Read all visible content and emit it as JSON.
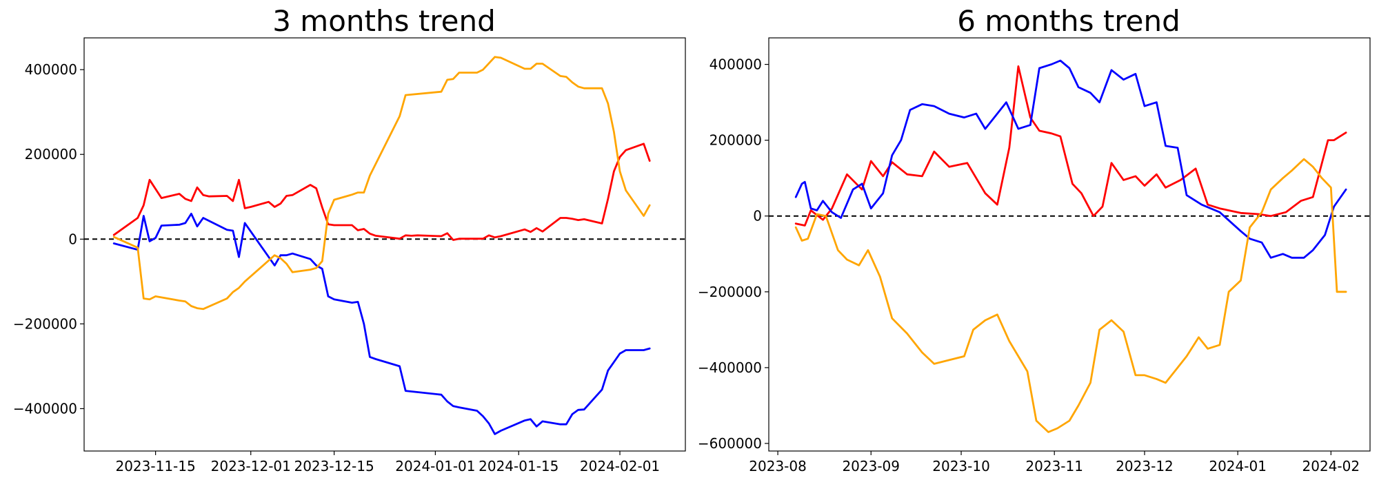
{
  "chart_data": [
    {
      "type": "line",
      "title": "3 months trend",
      "x_type": "date",
      "xlim": [
        "2023-11-03",
        "2024-02-12"
      ],
      "ylim": [
        -500000,
        475000
      ],
      "x_ticks": [
        "2023-11-15",
        "2023-12-01",
        "2023-12-15",
        "2024-01-01",
        "2024-01-15",
        "2024-02-01"
      ],
      "y_ticks": [
        -400000,
        -200000,
        0,
        200000,
        400000
      ],
      "y_tick_labels": [
        "−400000",
        "−200000",
        "0",
        "200000",
        "400000"
      ],
      "reference_line": {
        "y": 0,
        "style": "dashed",
        "color": "#000000"
      },
      "grid": false,
      "series": [
        {
          "color": "#ff0000",
          "x": [
            "2023-11-08",
            "2023-11-12",
            "2023-11-13",
            "2023-11-14",
            "2023-11-16",
            "2023-11-19",
            "2023-11-20",
            "2023-11-21",
            "2023-11-22",
            "2023-11-23",
            "2023-11-24",
            "2023-11-27",
            "2023-11-28",
            "2023-11-29",
            "2023-11-30",
            "2023-12-01",
            "2023-12-04",
            "2023-12-05",
            "2023-12-06",
            "2023-12-07",
            "2023-12-08",
            "2023-12-11",
            "2023-12-12",
            "2023-12-13",
            "2023-12-14",
            "2023-12-15",
            "2023-12-18",
            "2023-12-19",
            "2023-12-20",
            "2023-12-21",
            "2023-12-22",
            "2023-12-26",
            "2023-12-27",
            "2023-12-28",
            "2023-12-29",
            "2024-01-02",
            "2024-01-03",
            "2024-01-04",
            "2024-01-05",
            "2024-01-08",
            "2024-01-09",
            "2024-01-10",
            "2024-01-11",
            "2024-01-12",
            "2024-01-16",
            "2024-01-17",
            "2024-01-18",
            "2024-01-19",
            "2024-01-22",
            "2024-01-23",
            "2024-01-24",
            "2024-01-25",
            "2024-01-26",
            "2024-01-29",
            "2024-01-30",
            "2024-01-31",
            "2024-02-01",
            "2024-02-02",
            "2024-02-05",
            "2024-02-06"
          ],
          "y": [
            10000,
            50000,
            80000,
            140000,
            97000,
            107000,
            95000,
            90000,
            122000,
            104000,
            101000,
            102000,
            90000,
            140000,
            73000,
            76000,
            88000,
            76000,
            84000,
            102000,
            104000,
            128000,
            120000,
            75000,
            35000,
            33000,
            33000,
            21000,
            24000,
            13000,
            8000,
            1000,
            9000,
            8000,
            9000,
            7000,
            14000,
            -2000,
            1000,
            1000,
            1000,
            9000,
            4000,
            7000,
            23000,
            17000,
            26000,
            18000,
            50000,
            50000,
            48000,
            45000,
            47000,
            37000,
            95000,
            160000,
            194000,
            210000,
            225000,
            185000
          ]
        },
        {
          "color": "#0000ff",
          "x": [
            "2023-11-08",
            "2023-11-12",
            "2023-11-13",
            "2023-11-14",
            "2023-11-15",
            "2023-11-16",
            "2023-11-19",
            "2023-11-20",
            "2023-11-21",
            "2023-11-22",
            "2023-11-23",
            "2023-11-27",
            "2023-11-28",
            "2023-11-29",
            "2023-11-30",
            "2023-12-05",
            "2023-12-06",
            "2023-12-07",
            "2023-12-08",
            "2023-12-11",
            "2023-12-12",
            "2023-12-13",
            "2023-12-14",
            "2023-12-15",
            "2023-12-18",
            "2023-12-19",
            "2023-12-20",
            "2023-12-21",
            "2023-12-22",
            "2023-12-26",
            "2023-12-27",
            "2024-01-02",
            "2024-01-03",
            "2024-01-04",
            "2024-01-05",
            "2024-01-08",
            "2024-01-09",
            "2024-01-10",
            "2024-01-11",
            "2024-01-12",
            "2024-01-16",
            "2024-01-17",
            "2024-01-18",
            "2024-01-19",
            "2024-01-22",
            "2024-01-23",
            "2024-01-24",
            "2024-01-25",
            "2024-01-26",
            "2024-01-29",
            "2024-01-30",
            "2024-01-31",
            "2024-02-01",
            "2024-02-02",
            "2024-02-05",
            "2024-02-06"
          ],
          "y": [
            -10000,
            -25000,
            55000,
            -5000,
            3000,
            32000,
            34000,
            38000,
            60000,
            30000,
            50000,
            22000,
            20000,
            -42000,
            38000,
            -62000,
            -38000,
            -38000,
            -34000,
            -47000,
            -62000,
            -70000,
            -135000,
            -142000,
            -150000,
            -148000,
            -200000,
            -278000,
            -283000,
            -300000,
            -358000,
            -367000,
            -383000,
            -394000,
            -397000,
            -405000,
            -418000,
            -435000,
            -460000,
            -452000,
            -428000,
            -425000,
            -442000,
            -430000,
            -437000,
            -437000,
            -413000,
            -403000,
            -402000,
            -355000,
            -310000,
            -290000,
            -270000,
            -262000,
            -262000,
            -258000
          ]
        },
        {
          "color": "#ffa500",
          "x": [
            "2023-11-08",
            "2023-11-12",
            "2023-11-13",
            "2023-11-14",
            "2023-11-15",
            "2023-11-19",
            "2023-11-20",
            "2023-11-21",
            "2023-11-22",
            "2023-11-23",
            "2023-11-27",
            "2023-11-28",
            "2023-11-29",
            "2023-11-30",
            "2023-12-05",
            "2023-12-06",
            "2023-12-07",
            "2023-12-08",
            "2023-12-11",
            "2023-12-12",
            "2023-12-13",
            "2023-12-14",
            "2023-12-15",
            "2023-12-18",
            "2023-12-19",
            "2023-12-20",
            "2023-12-21",
            "2023-12-26",
            "2023-12-27",
            "2024-01-02",
            "2024-01-03",
            "2024-01-04",
            "2024-01-05",
            "2024-01-08",
            "2024-01-09",
            "2024-01-10",
            "2024-01-11",
            "2024-01-12",
            "2024-01-16",
            "2024-01-17",
            "2024-01-18",
            "2024-01-19",
            "2024-01-22",
            "2024-01-23",
            "2024-01-24",
            "2024-01-25",
            "2024-01-26",
            "2024-01-29",
            "2024-01-30",
            "2024-01-31",
            "2024-02-01",
            "2024-02-02",
            "2024-02-05",
            "2024-02-06"
          ],
          "y": [
            5000,
            -20000,
            -140000,
            -142000,
            -135000,
            -145000,
            -147000,
            -158000,
            -163000,
            -165000,
            -140000,
            -125000,
            -115000,
            -100000,
            -38000,
            -45000,
            -58000,
            -78000,
            -72000,
            -68000,
            -52000,
            60000,
            93000,
            105000,
            110000,
            110000,
            150000,
            290000,
            340000,
            348000,
            376000,
            378000,
            393000,
            393000,
            400000,
            415000,
            430000,
            428000,
            402000,
            402000,
            414000,
            414000,
            385000,
            383000,
            370000,
            360000,
            356000,
            356000,
            320000,
            253000,
            160000,
            115000,
            55000,
            80000
          ]
        }
      ]
    },
    {
      "type": "line",
      "title": "6 months trend",
      "x_type": "date",
      "xlim": [
        "2023-07-29",
        "2024-02-14"
      ],
      "ylim": [
        -620000,
        470000
      ],
      "x_ticks": [
        "2023-08",
        "2023-09",
        "2023-10",
        "2023-11",
        "2023-12",
        "2024-01",
        "2024-02"
      ],
      "x_tick_dates": [
        "2023-08-01",
        "2023-09-01",
        "2023-10-01",
        "2023-11-01",
        "2023-12-01",
        "2024-01-01",
        "2024-02-01"
      ],
      "y_ticks": [
        -600000,
        -400000,
        -200000,
        0,
        200000,
        400000
      ],
      "y_tick_labels": [
        "−600000",
        "−400000",
        "−200000",
        "0",
        "200000",
        "400000"
      ],
      "reference_line": {
        "y": 0,
        "style": "dashed",
        "color": "#000000"
      },
      "grid": false,
      "series": [
        {
          "color": "#ff0000",
          "x": [
            "2023-08-07",
            "2023-08-10",
            "2023-08-12",
            "2023-08-16",
            "2023-08-19",
            "2023-08-24",
            "2023-08-29",
            "2023-09-01",
            "2023-09-05",
            "2023-09-08",
            "2023-09-13",
            "2023-09-18",
            "2023-09-22",
            "2023-09-27",
            "2023-10-03",
            "2023-10-09",
            "2023-10-13",
            "2023-10-17",
            "2023-10-20",
            "2023-10-24",
            "2023-10-27",
            "2023-10-31",
            "2023-11-03",
            "2023-11-07",
            "2023-11-10",
            "2023-11-14",
            "2023-11-17",
            "2023-11-20",
            "2023-11-24",
            "2023-11-28",
            "2023-12-01",
            "2023-12-05",
            "2023-12-08",
            "2023-12-13",
            "2023-12-18",
            "2023-12-22",
            "2023-12-26",
            "2024-01-02",
            "2024-01-08",
            "2024-01-12",
            "2024-01-17",
            "2024-01-22",
            "2024-01-26",
            "2024-01-31",
            "2024-02-02",
            "2024-02-06"
          ],
          "y": [
            -20000,
            -25000,
            15000,
            -10000,
            20000,
            110000,
            70000,
            145000,
            105000,
            142000,
            110000,
            105000,
            170000,
            130000,
            140000,
            60000,
            30000,
            180000,
            395000,
            260000,
            225000,
            218000,
            210000,
            85000,
            60000,
            0,
            25000,
            140000,
            95000,
            105000,
            80000,
            110000,
            75000,
            95000,
            125000,
            30000,
            20000,
            8000,
            5000,
            0,
            10000,
            40000,
            50000,
            200000,
            200000,
            220000
          ]
        },
        {
          "color": "#0000ff",
          "x": [
            "2023-08-07",
            "2023-08-09",
            "2023-08-10",
            "2023-08-12",
            "2023-08-14",
            "2023-08-16",
            "2023-08-19",
            "2023-08-22",
            "2023-08-26",
            "2023-08-29",
            "2023-09-01",
            "2023-09-05",
            "2023-09-08",
            "2023-09-11",
            "2023-09-14",
            "2023-09-18",
            "2023-09-22",
            "2023-09-27",
            "2023-10-02",
            "2023-10-06",
            "2023-10-09",
            "2023-10-12",
            "2023-10-16",
            "2023-10-20",
            "2023-10-24",
            "2023-10-27",
            "2023-10-31",
            "2023-11-03",
            "2023-11-06",
            "2023-11-09",
            "2023-11-13",
            "2023-11-16",
            "2023-11-20",
            "2023-11-24",
            "2023-11-28",
            "2023-12-01",
            "2023-12-05",
            "2023-12-08",
            "2023-12-12",
            "2023-12-15",
            "2023-12-20",
            "2023-12-26",
            "2024-01-02",
            "2024-01-05",
            "2024-01-09",
            "2024-01-12",
            "2024-01-16",
            "2024-01-19",
            "2024-01-23",
            "2024-01-26",
            "2024-01-30",
            "2024-02-02",
            "2024-02-06"
          ],
          "y": [
            50000,
            85000,
            90000,
            20000,
            15000,
            40000,
            10000,
            -5000,
            70000,
            85000,
            20000,
            60000,
            160000,
            200000,
            280000,
            295000,
            290000,
            270000,
            260000,
            270000,
            230000,
            260000,
            300000,
            230000,
            240000,
            390000,
            400000,
            410000,
            390000,
            340000,
            325000,
            300000,
            385000,
            360000,
            375000,
            290000,
            300000,
            185000,
            180000,
            55000,
            30000,
            10000,
            -40000,
            -60000,
            -70000,
            -110000,
            -100000,
            -110000,
            -110000,
            -90000,
            -50000,
            25000,
            70000
          ]
        },
        {
          "color": "#ffa500",
          "x": [
            "2023-08-07",
            "2023-08-09",
            "2023-08-11",
            "2023-08-14",
            "2023-08-17",
            "2023-08-21",
            "2023-08-24",
            "2023-08-28",
            "2023-08-31",
            "2023-09-04",
            "2023-09-08",
            "2023-09-13",
            "2023-09-18",
            "2023-09-22",
            "2023-09-27",
            "2023-10-02",
            "2023-10-05",
            "2023-10-09",
            "2023-10-13",
            "2023-10-17",
            "2023-10-20",
            "2023-10-23",
            "2023-10-26",
            "2023-10-30",
            "2023-11-02",
            "2023-11-06",
            "2023-11-09",
            "2023-11-13",
            "2023-11-16",
            "2023-11-20",
            "2023-11-24",
            "2023-11-28",
            "2023-12-01",
            "2023-12-05",
            "2023-12-08",
            "2023-12-12",
            "2023-12-15",
            "2023-12-19",
            "2023-12-22",
            "2023-12-26",
            "2023-12-29",
            "2024-01-02",
            "2024-01-05",
            "2024-01-09",
            "2024-01-12",
            "2024-01-16",
            "2024-01-19",
            "2024-01-23",
            "2024-01-26",
            "2024-01-29",
            "2024-02-01",
            "2024-02-03",
            "2024-02-06"
          ],
          "y": [
            -30000,
            -65000,
            -60000,
            5000,
            0,
            -90000,
            -115000,
            -130000,
            -90000,
            -160000,
            -270000,
            -310000,
            -360000,
            -390000,
            -380000,
            -370000,
            -300000,
            -275000,
            -260000,
            -330000,
            -370000,
            -410000,
            -540000,
            -570000,
            -560000,
            -540000,
            -500000,
            -440000,
            -300000,
            -275000,
            -305000,
            -420000,
            -420000,
            -430000,
            -440000,
            -400000,
            -370000,
            -320000,
            -350000,
            -340000,
            -200000,
            -170000,
            -30000,
            10000,
            70000,
            100000,
            120000,
            150000,
            130000,
            100000,
            75000,
            -200000,
            -200000
          ]
        }
      ]
    }
  ]
}
